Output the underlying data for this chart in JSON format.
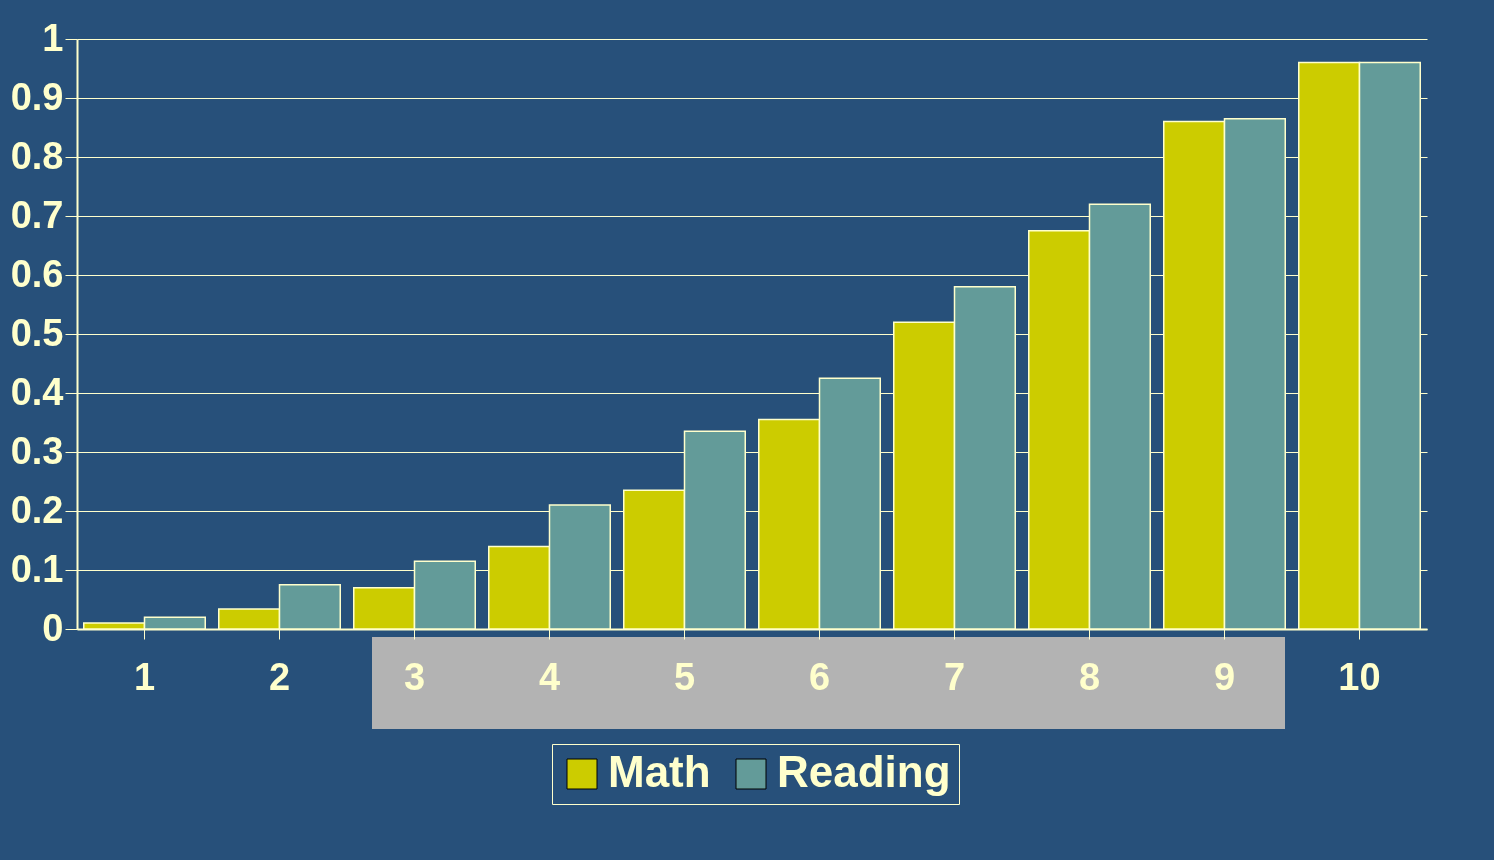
{
  "chart_data": {
    "type": "bar",
    "categories": [
      "1",
      "2",
      "3",
      "4",
      "5",
      "6",
      "7",
      "8",
      "9",
      "10"
    ],
    "series": [
      {
        "name": "Math",
        "color": "#cccc00",
        "values": [
          0.01,
          0.034,
          0.07,
          0.14,
          0.235,
          0.355,
          0.52,
          0.675,
          0.86,
          0.96
        ]
      },
      {
        "name": "Reading",
        "color": "#639b99",
        "values": [
          0.02,
          0.075,
          0.115,
          0.21,
          0.335,
          0.425,
          0.58,
          0.72,
          0.865,
          0.96
        ]
      }
    ],
    "ylim": [
      0,
      1
    ],
    "yticks": [
      0,
      0.1,
      0.2,
      0.3,
      0.4,
      0.5,
      0.6,
      0.7,
      0.8,
      0.9,
      1
    ],
    "grid": "y",
    "legend": "bottom"
  }
}
